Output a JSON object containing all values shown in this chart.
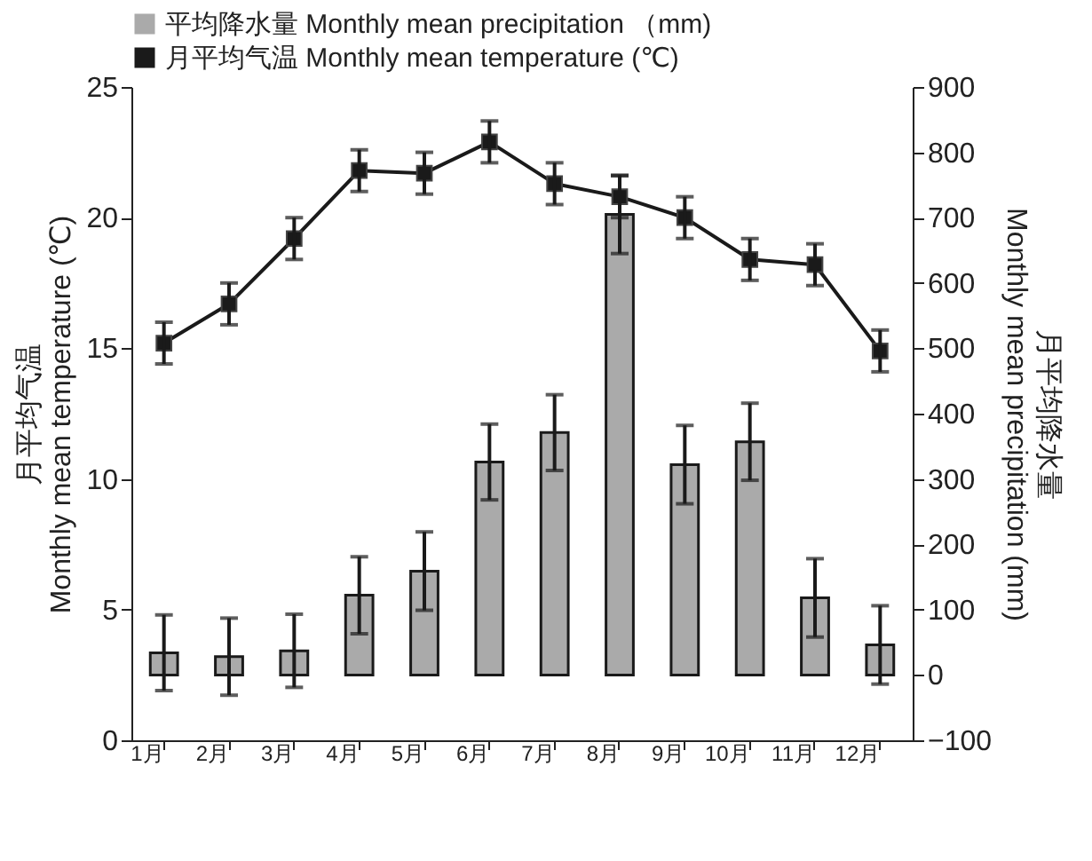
{
  "chart_data": {
    "type": "bar",
    "categories": [
      "1月",
      "2月",
      "3月",
      "4月",
      "5月",
      "6月",
      "7月",
      "8月",
      "9月",
      "10月",
      "11月",
      "12月"
    ],
    "ylabel": "月平均气温\nMonthly mean temperature (℃)",
    "y2label": "月平均降水量\nMonthly mean precipitation (mm)",
    "series": [
      {
        "name": "平均降水量 Monthly mean precipitation （mm)",
        "axis": "y2",
        "color": "#aaaaaa",
        "values": [
          34,
          28,
          37,
          122,
          159,
          326,
          371,
          705,
          322,
          357,
          118,
          46
        ],
        "errors": [
          58,
          59,
          56,
          59,
          60,
          58,
          58,
          60,
          60,
          59,
          60,
          60
        ]
      },
      {
        "name": "月平均气温 Monthly mean temperature (℃)",
        "type": "line",
        "color": "#1a1a1a",
        "values": [
          15.2,
          16.7,
          19.2,
          21.8,
          21.7,
          22.9,
          21.3,
          20.8,
          20.0,
          18.4,
          18.2,
          14.9
        ],
        "errors": [
          0.8,
          0.8,
          0.8,
          0.8,
          0.8,
          0.8,
          0.8,
          0.8,
          0.8,
          0.8,
          0.8,
          0.8
        ]
      }
    ],
    "ylim": [
      0,
      25
    ],
    "yticks": [
      0,
      5,
      10,
      15,
      20,
      25
    ],
    "y2lim": [
      -100,
      900
    ],
    "y2ticks": [
      -100,
      0,
      100,
      200,
      300,
      400,
      500,
      600,
      700,
      800,
      900
    ],
    "legend": "top",
    "marker": "square",
    "line_style": "solid",
    "grid": false
  }
}
